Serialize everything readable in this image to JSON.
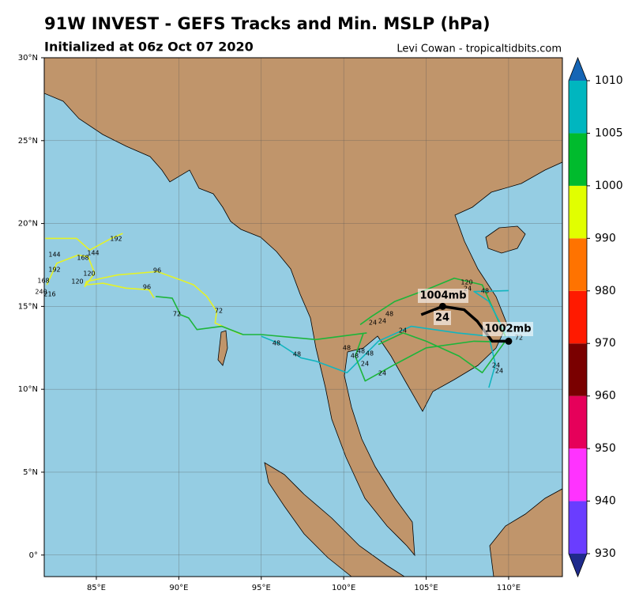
{
  "map": {
    "title": "91W INVEST - GEFS Tracks and Min. MSLP (hPa)",
    "subtitle": "Initialized at 06z Oct 07 2020",
    "credit": "Levi Cowan - tropicaltidbits.com",
    "lonlim": [
      81.84,
      113.26
    ],
    "latlim": [
      -1.3,
      30
    ],
    "lonticks": [
      {
        "value": 85,
        "label": "85°E"
      },
      {
        "value": 90,
        "label": "90°E"
      },
      {
        "value": 95,
        "label": "95°E"
      },
      {
        "value": 100,
        "label": "100°E"
      },
      {
        "value": 105,
        "label": "105°E"
      },
      {
        "value": 110,
        "label": "110°E"
      }
    ],
    "latticks": [
      {
        "value": 0,
        "label": "0°"
      },
      {
        "value": 5,
        "label": "5°N"
      },
      {
        "value": 10,
        "label": "10°N"
      },
      {
        "value": 15,
        "label": "15°N"
      },
      {
        "value": 20,
        "label": "20°N"
      },
      {
        "value": 25,
        "label": "25°N"
      },
      {
        "value": 30,
        "label": "30°N"
      }
    ],
    "grid": true,
    "ocean_color": "#95cde3",
    "land_color": "#c0956b",
    "tracks": [
      {
        "color": "#e4f228",
        "lon": [
          81.9,
          83.8,
          84.6,
          85.9,
          86.6
        ],
        "lat": [
          19.1,
          19.1,
          18.4,
          19.1,
          19.4
        ]
      },
      {
        "color": "#e4f228",
        "lon": [
          93.8,
          92.2,
          92.3,
          91.7,
          90.9,
          90.1,
          88.7,
          86.3,
          84.4,
          84.3,
          84.9,
          84.5,
          83.9,
          82.6,
          82.3,
          82.0
        ],
        "lat": [
          13.3,
          14.0,
          14.7,
          15.6,
          16.3,
          16.6,
          17.1,
          16.9,
          16.5,
          16.2,
          17.0,
          18.0,
          18.1,
          17.6,
          16.95,
          16.3
        ]
      },
      {
        "color": "#e4f228",
        "lon": [
          88.5,
          88.2,
          86.8,
          85.4,
          84.4
        ],
        "lat": [
          15.5,
          16.0,
          16.1,
          16.4,
          16.3
        ]
      },
      {
        "color": "#1db53a",
        "lon": [
          101.4,
          98.3,
          95.0,
          93.9,
          92.6,
          91.1,
          90.6,
          90.1,
          89.6,
          88.6
        ],
        "lat": [
          13.4,
          13.0,
          13.3,
          13.3,
          13.8,
          13.6,
          14.3,
          14.5,
          15.5,
          15.6
        ]
      },
      {
        "color": "#12b5bf",
        "lon": [
          108.8,
          109.2,
          108.8,
          106.9,
          104.1,
          102.1,
          100.2,
          98.3,
          97.4,
          96.0,
          95.0
        ],
        "lat": [
          10.1,
          11.5,
          13.2,
          13.4,
          13.8,
          12.9,
          11.0,
          11.7,
          11.9,
          12.8,
          13.2
        ]
      },
      {
        "color": "#1db53a",
        "lon": [
          109.8,
          107.9,
          105.0,
          103.1,
          101.3,
          100.7,
          101.2
        ],
        "lat": [
          12.85,
          12.9,
          12.5,
          11.5,
          10.5,
          12.0,
          13.4
        ]
      },
      {
        "color": "#1db53a",
        "lon": [
          109.8,
          108.4,
          106.7,
          105.0,
          103.1,
          101.7,
          101.0
        ],
        "lat": [
          13.2,
          16.3,
          16.7,
          16.0,
          15.3,
          14.4,
          13.9
        ]
      },
      {
        "color": "#12b5bf",
        "lon": [
          109.8,
          108.8,
          107.9,
          110.0
        ],
        "lat": [
          13.4,
          15.3,
          15.9,
          15.95
        ]
      },
      {
        "color": "#1db53a",
        "lon": [
          109.8,
          108.4,
          107.0,
          105.0,
          103.6,
          102.1
        ],
        "lat": [
          12.9,
          11.0,
          12.0,
          12.9,
          13.4,
          12.7
        ]
      },
      {
        "color": "#000000",
        "lon": [
          104.7,
          106.0,
          107.3,
          108.1,
          109.0,
          110.0
        ],
        "lat": [
          14.5,
          15.0,
          14.8,
          14.1,
          12.9,
          12.9
        ]
      }
    ],
    "track_labels": [
      "192",
      "144",
      "144",
      "168",
      "192",
      "120",
      "120",
      "168",
      "240",
      "216",
      "96",
      "96",
      "72",
      "72",
      "48",
      "48",
      "48",
      "48",
      "48",
      "48",
      "24",
      "24",
      "48",
      "24",
      "24",
      "24",
      "24",
      "120",
      "48",
      "24",
      "24",
      "72"
    ],
    "annotations": [
      "1004mb",
      "24",
      "1002mb"
    ],
    "colorbar": {
      "ticks": [
        930,
        940,
        950,
        960,
        970,
        980,
        990,
        1000,
        1005,
        1010
      ],
      "colors": [
        "#6a3dff",
        "#ff33ff",
        "#e6005a",
        "#7a0000",
        "#ff1a00",
        "#ff7300",
        "#e1ff00",
        "#00bb2d",
        "#00b6bf"
      ],
      "under_color": "#1f2a8c",
      "over_color": "#1565b5"
    }
  }
}
